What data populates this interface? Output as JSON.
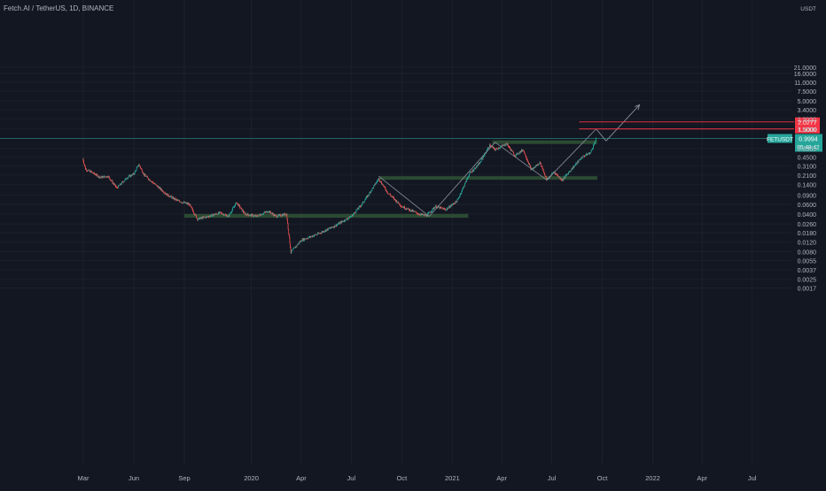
{
  "header": {
    "symbol_title": "Fetch.AI / TetherUS, 1D, BINANCE"
  },
  "chart_data": {
    "type": "candlestick",
    "scale": "log",
    "currency": "USDT",
    "y_ticks": [
      "21.0000",
      "16.0000",
      "11.0000",
      "7.5000",
      "5.0000",
      "3.4000",
      "2.3000",
      "1.5000",
      "0.9994",
      "0.6500",
      "0.4500",
      "0.3100",
      "0.2100",
      "0.1400",
      "0.0900",
      "0.0600",
      "0.0400",
      "0.0260",
      "0.0180",
      "0.0120",
      "0.0080",
      "0.0055",
      "0.0037",
      "0.0025",
      "0.0017"
    ],
    "x_ticks": [
      "Mar",
      "Jun",
      "Sep",
      "2020",
      "Apr",
      "Jul",
      "Oct",
      "2021",
      "Apr",
      "Jul",
      "Oct",
      "2022",
      "Apr",
      "Jul"
    ],
    "price_path": [
      [
        "2019-02-28",
        0.42
      ],
      [
        "2019-03-05",
        0.27
      ],
      [
        "2019-03-15",
        0.24
      ],
      [
        "2019-04-01",
        0.19
      ],
      [
        "2019-04-15",
        0.2
      ],
      [
        "2019-05-01",
        0.12
      ],
      [
        "2019-05-20",
        0.19
      ],
      [
        "2019-06-01",
        0.22
      ],
      [
        "2019-06-10",
        0.33
      ],
      [
        "2019-06-20",
        0.21
      ],
      [
        "2019-07-10",
        0.14
      ],
      [
        "2019-08-01",
        0.09
      ],
      [
        "2019-08-20",
        0.07
      ],
      [
        "2019-09-10",
        0.06
      ],
      [
        "2019-09-25",
        0.032
      ],
      [
        "2019-10-15",
        0.036
      ],
      [
        "2019-11-05",
        0.042
      ],
      [
        "2019-11-20",
        0.036
      ],
      [
        "2019-12-05",
        0.065
      ],
      [
        "2019-12-20",
        0.04
      ],
      [
        "2020-01-10",
        0.036
      ],
      [
        "2020-02-01",
        0.045
      ],
      [
        "2020-02-15",
        0.036
      ],
      [
        "2020-03-05",
        0.04
      ],
      [
        "2020-03-13",
        0.0078
      ],
      [
        "2020-04-01",
        0.013
      ],
      [
        "2020-05-01",
        0.017
      ],
      [
        "2020-06-01",
        0.024
      ],
      [
        "2020-07-01",
        0.036
      ],
      [
        "2020-07-20",
        0.06
      ],
      [
        "2020-08-01",
        0.09
      ],
      [
        "2020-08-20",
        0.18
      ],
      [
        "2020-09-05",
        0.1
      ],
      [
        "2020-10-01",
        0.055
      ],
      [
        "2020-11-01",
        0.04
      ],
      [
        "2020-11-15",
        0.037
      ],
      [
        "2020-12-01",
        0.055
      ],
      [
        "2020-12-20",
        0.048
      ],
      [
        "2021-01-10",
        0.07
      ],
      [
        "2021-02-01",
        0.22
      ],
      [
        "2021-02-20",
        0.35
      ],
      [
        "2021-03-10",
        0.75
      ],
      [
        "2021-03-20",
        0.62
      ],
      [
        "2021-04-10",
        0.8
      ],
      [
        "2021-04-25",
        0.48
      ],
      [
        "2021-05-10",
        0.62
      ],
      [
        "2021-05-25",
        0.26
      ],
      [
        "2021-06-10",
        0.36
      ],
      [
        "2021-06-22",
        0.17
      ],
      [
        "2021-07-05",
        0.24
      ],
      [
        "2021-07-20",
        0.17
      ],
      [
        "2021-08-10",
        0.3
      ],
      [
        "2021-08-25",
        0.45
      ],
      [
        "2021-09-10",
        0.55
      ],
      [
        "2021-09-20",
        0.9994
      ]
    ],
    "support_zones": [
      {
        "from": "2019-09-01",
        "to": "2021-01-30",
        "low": 0.034,
        "high": 0.04
      },
      {
        "from": "2020-08-22",
        "to": "2021-09-22",
        "low": 0.18,
        "high": 0.2
      },
      {
        "from": "2021-03-15",
        "to": "2021-09-22",
        "low": 0.8,
        "high": 0.92
      }
    ],
    "trend_lines": [
      {
        "from": [
          "2020-08-20",
          0.2
        ],
        "to": [
          "2020-11-20",
          0.036
        ]
      },
      {
        "from": [
          "2020-11-20",
          0.036
        ],
        "to": [
          "2021-03-20",
          0.85
        ]
      },
      {
        "from": [
          "2021-03-20",
          0.85
        ],
        "to": [
          "2021-06-22",
          0.17
        ]
      },
      {
        "from": [
          "2021-06-22",
          0.17
        ],
        "to": [
          "2021-09-20",
          1.5
        ]
      }
    ],
    "projection_lines": [
      {
        "from": [
          "2021-09-20",
          1.5
        ],
        "to": [
          "2021-10-08",
          0.9
        ]
      },
      {
        "from": [
          "2021-10-08",
          0.9
        ],
        "to": [
          "2021-12-08",
          4.2
        ],
        "arrow": true
      }
    ],
    "target_levels": [
      {
        "value": 2.0277,
        "label": "2.0277",
        "color": "#f23645",
        "from": "2021-08-20"
      },
      {
        "value": 1.5,
        "label": "1.5000",
        "color": "#f23645",
        "from": "2021-08-20"
      }
    ],
    "current_price": {
      "symbol": "FETUSDT",
      "value": 0.9994,
      "label": "0.9994",
      "countdown": "05:48:42",
      "color": "#26a69a"
    },
    "colors": {
      "up": "#26a69a",
      "down": "#ef5350",
      "zone": "#2e4f34",
      "line": "#8a8f99",
      "background": "#131722"
    }
  }
}
